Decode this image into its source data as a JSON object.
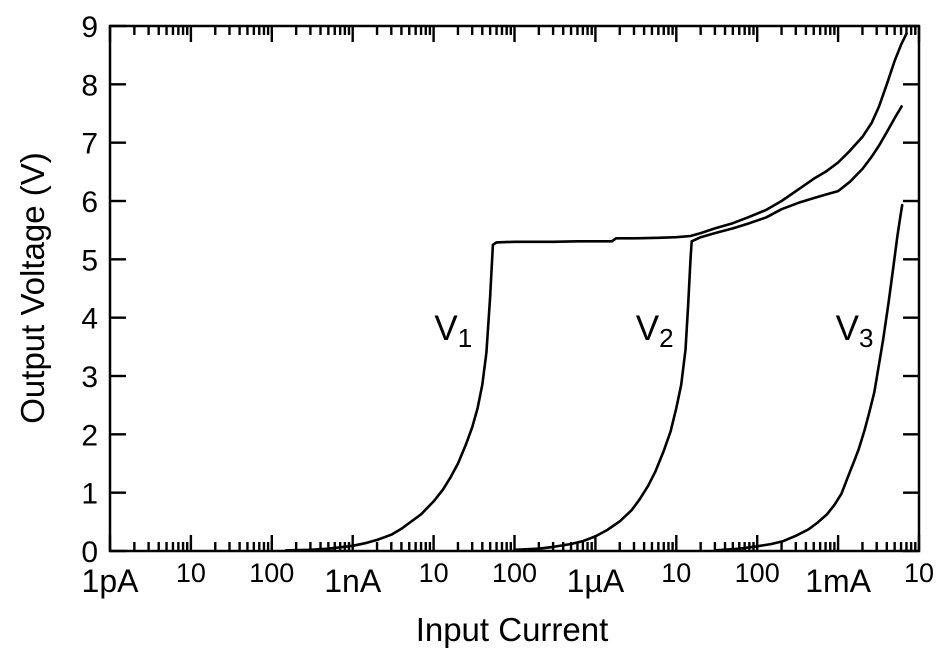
{
  "figure": {
    "background": "#ffffff",
    "ink_color": "#000000"
  },
  "chart_data": {
    "type": "line",
    "title": "",
    "xlabel": "Input Current",
    "ylabel": "Output Voltage (V)",
    "grid": false,
    "legend": "none (curves labeled inline)",
    "x_axis": {
      "scale": "log",
      "min": 1e-12,
      "max": 0.01,
      "ticks": [
        {
          "label": "1pA",
          "unit": true
        },
        {
          "label": "10",
          "unit": false
        },
        {
          "label": "100",
          "unit": false
        },
        {
          "label": "1nA",
          "unit": true
        },
        {
          "label": "10",
          "unit": false
        },
        {
          "label": "100",
          "unit": false
        },
        {
          "label": "1µA",
          "unit": true
        },
        {
          "label": "10",
          "unit": false
        },
        {
          "label": "100",
          "unit": false
        },
        {
          "label": "1mA",
          "unit": true
        },
        {
          "label": "10",
          "unit": false
        }
      ],
      "minor_ticks_per_decade": [
        2,
        3,
        4,
        5,
        6,
        7,
        8,
        9
      ]
    },
    "y_axis": {
      "scale": "linear",
      "min": 0,
      "max": 9,
      "ticks": [
        0,
        1,
        2,
        3,
        4,
        5,
        6,
        7,
        8,
        9
      ]
    },
    "series": [
      {
        "name": "V1",
        "label": {
          "main": "V",
          "sub": "1"
        },
        "label_at": {
          "x": 1.75e-08,
          "y": 3.62
        },
        "points": [
          [
            1.5e-10,
            0.01
          ],
          [
            3e-10,
            0.02
          ],
          [
            5e-10,
            0.04
          ],
          [
            1e-09,
            0.09
          ],
          [
            1.5e-09,
            0.14
          ],
          [
            2e-09,
            0.19
          ],
          [
            3e-09,
            0.28
          ],
          [
            4e-09,
            0.38
          ],
          [
            5e-09,
            0.48
          ],
          [
            7e-09,
            0.63
          ],
          [
            1e-08,
            0.85
          ],
          [
            1.3e-08,
            1.05
          ],
          [
            1.6e-08,
            1.25
          ],
          [
            2e-08,
            1.5
          ],
          [
            2.5e-08,
            1.82
          ],
          [
            3e-08,
            2.12
          ],
          [
            3.5e-08,
            2.45
          ],
          [
            4e-08,
            2.85
          ],
          [
            4.5e-08,
            3.4
          ],
          [
            5e-08,
            4.35
          ],
          [
            5.4e-08,
            5.25
          ],
          [
            6e-08,
            5.29
          ],
          [
            1e-07,
            5.3
          ],
          [
            3e-07,
            5.3
          ],
          [
            6e-07,
            5.31
          ],
          [
            1e-06,
            5.31
          ],
          [
            1.6e-06,
            5.31
          ],
          [
            1.8e-06,
            5.36
          ],
          [
            3e-06,
            5.36
          ],
          [
            6e-06,
            5.37
          ],
          [
            1e-05,
            5.38
          ],
          [
            1.5e-05,
            5.4
          ],
          [
            2e-05,
            5.45
          ],
          [
            3e-05,
            5.53
          ],
          [
            5e-05,
            5.62
          ],
          [
            8e-05,
            5.73
          ],
          [
            0.00013,
            5.85
          ],
          [
            0.0002,
            6.0
          ],
          [
            0.00034,
            6.22
          ],
          [
            0.0005,
            6.38
          ],
          [
            0.0007,
            6.5
          ],
          [
            0.001,
            6.66
          ],
          [
            0.0014,
            6.86
          ],
          [
            0.002,
            7.1
          ],
          [
            0.0026,
            7.34
          ],
          [
            0.0032,
            7.62
          ],
          [
            0.004,
            8.0
          ],
          [
            0.005,
            8.4
          ],
          [
            0.006,
            8.68
          ],
          [
            0.007,
            8.87
          ]
        ]
      },
      {
        "name": "V2",
        "label": {
          "main": "V",
          "sub": "2"
        },
        "label_at": {
          "x": 5.4e-06,
          "y": 3.62
        },
        "points": [
          [
            1e-07,
            0.02
          ],
          [
            2e-07,
            0.04
          ],
          [
            3e-07,
            0.07
          ],
          [
            5e-07,
            0.12
          ],
          [
            7e-07,
            0.17
          ],
          [
            1e-06,
            0.25
          ],
          [
            1.4e-06,
            0.36
          ],
          [
            2e-06,
            0.51
          ],
          [
            2.8e-06,
            0.7
          ],
          [
            3.5e-06,
            0.88
          ],
          [
            4.5e-06,
            1.12
          ],
          [
            5.5e-06,
            1.36
          ],
          [
            7e-06,
            1.72
          ],
          [
            8.5e-06,
            2.05
          ],
          [
            1e-05,
            2.45
          ],
          [
            1.15e-05,
            2.85
          ],
          [
            1.3e-05,
            3.45
          ],
          [
            1.4e-05,
            4.2
          ],
          [
            1.5e-05,
            5.0
          ],
          [
            1.55e-05,
            5.31
          ],
          [
            2e-05,
            5.38
          ],
          [
            3e-05,
            5.45
          ],
          [
            5e-05,
            5.53
          ],
          [
            8e-05,
            5.62
          ],
          [
            0.00013,
            5.72
          ],
          [
            0.0002,
            5.86
          ],
          [
            0.00034,
            5.98
          ],
          [
            0.0005,
            6.05
          ],
          [
            0.0007,
            6.11
          ],
          [
            0.001,
            6.17
          ],
          [
            0.0014,
            6.33
          ],
          [
            0.002,
            6.55
          ],
          [
            0.0026,
            6.76
          ],
          [
            0.0032,
            6.95
          ],
          [
            0.004,
            7.18
          ],
          [
            0.005,
            7.42
          ],
          [
            0.0061,
            7.62
          ]
        ]
      },
      {
        "name": "V3",
        "label": {
          "main": "V",
          "sub": "3"
        },
        "label_at": {
          "x": 0.0016,
          "y": 3.62
        },
        "points": [
          [
            3e-05,
            0.01
          ],
          [
            6e-05,
            0.04
          ],
          [
            0.0001,
            0.08
          ],
          [
            0.00015,
            0.12
          ],
          [
            0.00021,
            0.17
          ],
          [
            0.0003,
            0.26
          ],
          [
            0.00043,
            0.37
          ],
          [
            0.00055,
            0.48
          ],
          [
            0.00073,
            0.63
          ],
          [
            0.0009,
            0.79
          ],
          [
            0.0011,
            0.98
          ],
          [
            0.00135,
            1.3
          ],
          [
            0.0016,
            1.56
          ],
          [
            0.0018,
            1.75
          ],
          [
            0.0021,
            2.05
          ],
          [
            0.0024,
            2.35
          ],
          [
            0.0028,
            2.72
          ],
          [
            0.0032,
            3.2
          ],
          [
            0.0036,
            3.62
          ],
          [
            0.0042,
            4.25
          ],
          [
            0.0048,
            4.85
          ],
          [
            0.0054,
            5.4
          ],
          [
            0.0059,
            5.75
          ],
          [
            0.0062,
            5.93
          ]
        ]
      }
    ]
  }
}
